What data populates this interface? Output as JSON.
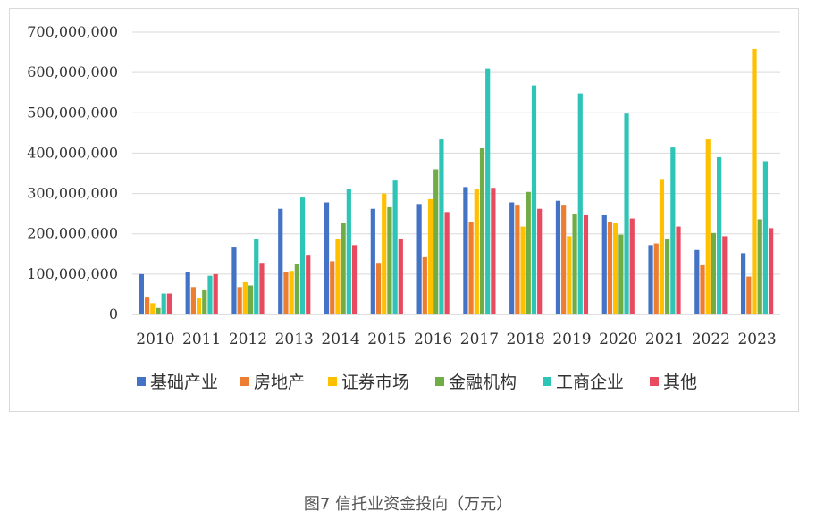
{
  "caption": "图7 信托业资金投向（万元）",
  "chart_data": {
    "type": "bar",
    "categories": [
      "2010",
      "2011",
      "2012",
      "2013",
      "2014",
      "2015",
      "2016",
      "2017",
      "2018",
      "2019",
      "2020",
      "2021",
      "2022",
      "2023"
    ],
    "ylim": [
      0,
      700000000
    ],
    "yticks": [
      0,
      100000000,
      200000000,
      300000000,
      400000000,
      500000000,
      600000000,
      700000000
    ],
    "ytick_labels": [
      "0",
      "100,000,000",
      "200,000,000",
      "300,000,000",
      "400,000,000",
      "500,000,000",
      "600,000,000",
      "700,000,000"
    ],
    "grid": true,
    "legend_position": "bottom",
    "series": [
      {
        "name": "基础产业",
        "color": "#4472C4",
        "values": [
          100000000,
          105000000,
          166000000,
          262000000,
          278000000,
          262000000,
          274000000,
          316000000,
          278000000,
          282000000,
          246000000,
          172000000,
          160000000,
          152000000
        ]
      },
      {
        "name": "房地产",
        "color": "#ED7D31",
        "values": [
          44000000,
          68000000,
          68000000,
          105000000,
          132000000,
          128000000,
          142000000,
          230000000,
          270000000,
          270000000,
          230000000,
          176000000,
          122000000,
          94000000
        ]
      },
      {
        "name": "证券市场",
        "color": "#FFC000",
        "values": [
          28000000,
          40000000,
          80000000,
          108000000,
          188000000,
          300000000,
          286000000,
          310000000,
          218000000,
          194000000,
          226000000,
          336000000,
          434000000,
          658000000
        ]
      },
      {
        "name": "金融机构",
        "color": "#70AD47",
        "values": [
          16000000,
          60000000,
          72000000,
          124000000,
          226000000,
          266000000,
          360000000,
          412000000,
          304000000,
          250000000,
          198000000,
          188000000,
          202000000,
          236000000
        ]
      },
      {
        "name": "工商企业",
        "color": "#2EC4B6",
        "values": [
          52000000,
          96000000,
          188000000,
          290000000,
          312000000,
          332000000,
          434000000,
          610000000,
          568000000,
          548000000,
          498000000,
          414000000,
          390000000,
          380000000
        ]
      },
      {
        "name": "其他",
        "color": "#E84A5F",
        "values": [
          52000000,
          100000000,
          128000000,
          148000000,
          172000000,
          188000000,
          254000000,
          314000000,
          262000000,
          246000000,
          238000000,
          218000000,
          194000000,
          214000000
        ]
      }
    ]
  }
}
